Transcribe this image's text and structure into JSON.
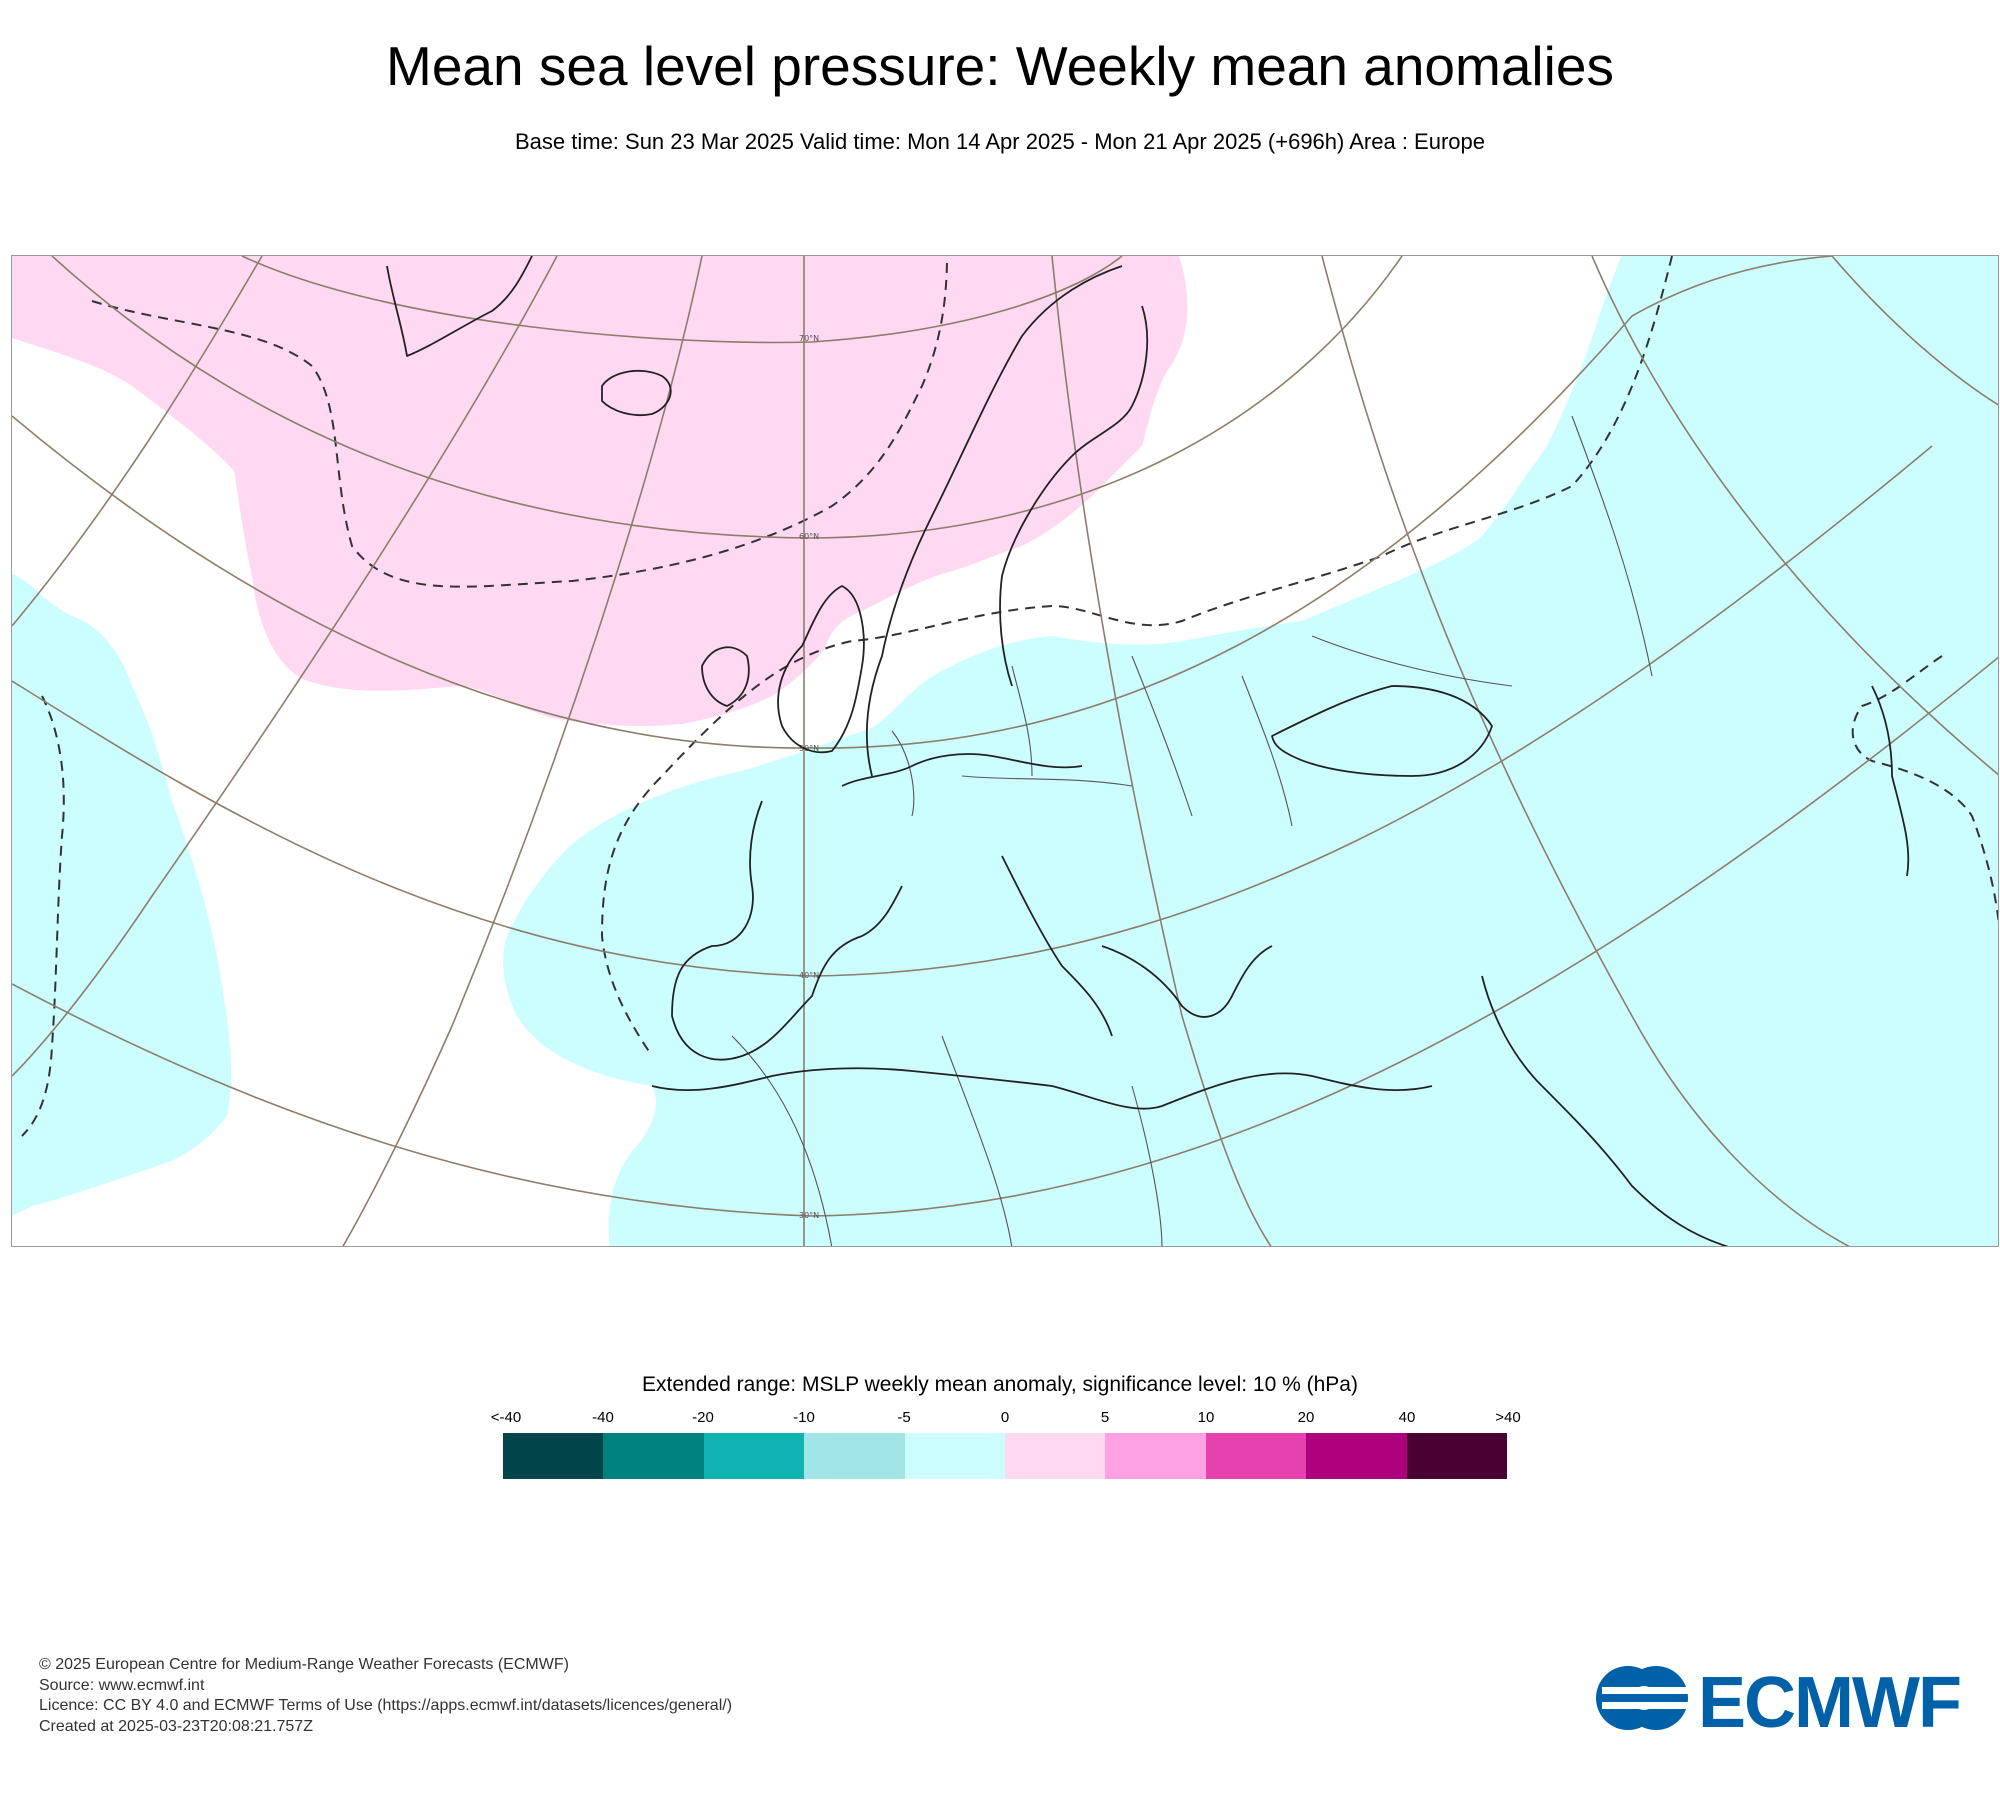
{
  "title": "Mean sea level pressure: Weekly mean anomalies",
  "subtitle": "Base time: Sun 23 Mar 2025 Valid time: Mon 14 Apr 2025 - Mon 21 Apr 2025 (+696h) Area : Europe",
  "map": {
    "latitude_labels": [
      "70°N",
      "60°N",
      "50°N",
      "40°N",
      "30°N"
    ],
    "colors": {
      "positive_anomaly_fill": "#ffd9f2",
      "negative_anomaly_fill": "#ccfdff",
      "coastline": "#222222",
      "graticule": "#8c7e6a",
      "border": "#555555"
    }
  },
  "legend": {
    "title": "Extended range: MSLP weekly mean anomaly, significance level: 10 % (hPa)",
    "ticks": [
      "<-40",
      "-40",
      "-20",
      "-10",
      "-5",
      "0",
      "5",
      "10",
      "20",
      "40",
      ">40"
    ],
    "colors": [
      "#01444a",
      "#008180",
      "#10b2b2",
      "#a1e5e6",
      "#ccfdff",
      "#ffd9f2",
      "#ffa2e2",
      "#e641ae",
      "#ae017e",
      "#4a0031"
    ]
  },
  "footer": {
    "line1": "© 2025 European Centre for Medium-Range Weather Forecasts (ECMWF)",
    "line2": "Source: www.ecmwf.int",
    "line3": "Licence: CC BY 4.0 and ECMWF Terms of Use (https://apps.ecmwf.int/datasets/licences/general/)",
    "line4": "Created at 2025-03-23T20:08:21.757Z"
  },
  "logo": {
    "text": "ECMWF",
    "color": "#0061a8"
  }
}
